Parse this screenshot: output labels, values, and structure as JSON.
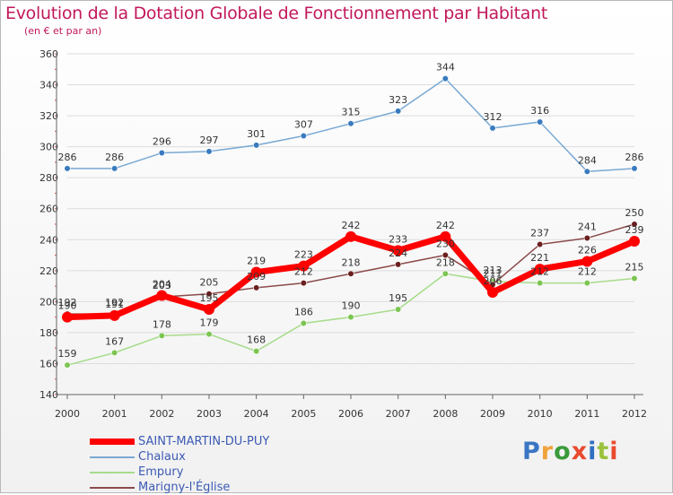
{
  "title": "Evolution de la Dotation Globale de Fonctionnement par Habitant",
  "subtitle": "(en € et par an)",
  "logo": {
    "text": "Proxiti",
    "letter_colors": [
      "#3a76c4",
      "#f0a23a",
      "#3a9a3a",
      "#e84a2e",
      "#2f6fc0",
      "#9ac23c",
      "#e84a2e"
    ]
  },
  "colors": {
    "title": "#c2185b",
    "grid": "#dcdcdc",
    "axis": "#666666",
    "legend_text": "#3c5ab4"
  },
  "chart_data": {
    "type": "line",
    "title": "Evolution de la Dotation Globale de Fonctionnement par Habitant",
    "subtitle": "(en € et par an)",
    "x": [
      "2000",
      "2001",
      "2002",
      "2003",
      "2004",
      "2005",
      "2006",
      "2007",
      "2008",
      "2009",
      "2010",
      "2011",
      "2012"
    ],
    "ylim": [
      140,
      360
    ],
    "yticks": [
      140,
      160,
      180,
      200,
      220,
      240,
      260,
      280,
      300,
      320,
      340,
      360
    ],
    "grid": true,
    "legend_position": "bottom-left",
    "series": [
      {
        "name": "SAINT-MARTIN-DU-PUY",
        "color": "#ff0000",
        "marker": "#ff0000",
        "width": 7,
        "values": [
          190,
          191,
          204,
          195,
          219,
          223,
          242,
          233,
          242,
          206,
          221,
          226,
          239
        ]
      },
      {
        "name": "Chalaux",
        "color": "#79a9d3",
        "marker": "#3a7bbf",
        "width": 1.5,
        "values": [
          286,
          286,
          296,
          297,
          301,
          307,
          315,
          323,
          344,
          312,
          316,
          284,
          286
        ]
      },
      {
        "name": "Empury",
        "color": "#a6dc8a",
        "marker": "#7cc552",
        "width": 1.5,
        "values": [
          159,
          167,
          178,
          179,
          168,
          186,
          190,
          195,
          218,
          213,
          212,
          212,
          215
        ]
      },
      {
        "name": "Marigny-l'Église",
        "color": "#8c4a4a",
        "marker": "#6b1f1f",
        "width": 1.5,
        "values": [
          192,
          192,
          203,
          205,
          209,
          212,
          218,
          224,
          230,
          211,
          237,
          241,
          250
        ]
      }
    ],
    "data_labels": {
      "SAINT-MARTIN-DU-PUY": [
        "190",
        "191",
        "204",
        "195",
        "219",
        "223",
        "242",
        "233",
        "242",
        "206",
        "221",
        "226",
        "239"
      ],
      "Chalaux": [
        "286",
        "286",
        "296",
        "297",
        "301",
        "307",
        "315",
        "323",
        "344",
        "312",
        "316",
        "284",
        "286"
      ],
      "Empury": [
        "159",
        "167",
        "178",
        "179",
        "168",
        "186",
        "190",
        "195",
        "218",
        "213",
        "212",
        "212",
        "215"
      ],
      "Marigny-l'Église": [
        "192",
        "192",
        "203",
        "205",
        "209",
        "212",
        "218",
        "224",
        "230",
        "211",
        "237",
        "241",
        "250"
      ]
    }
  }
}
